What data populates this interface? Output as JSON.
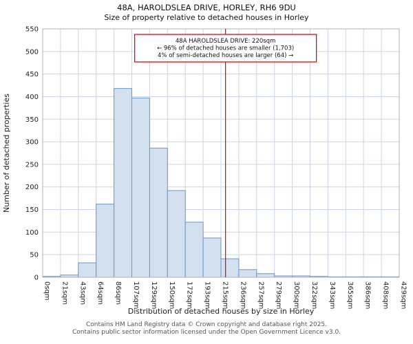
{
  "title": "48A, HAROLDSLEA DRIVE, HORLEY, RH6 9DU",
  "subtitle": "Size of property relative to detached houses in Horley",
  "chart_data": {
    "type": "bar",
    "title": "48A, HAROLDSLEA DRIVE, HORLEY, RH6 9DU — Size of property relative to detached houses in Horley",
    "xlabel": "Distribution of detached houses by size in Horley",
    "ylabel": "Number of detached properties",
    "bin_edges_sqm": [
      0,
      21,
      43,
      64,
      86,
      107,
      129,
      150,
      172,
      193,
      215,
      236,
      257,
      279,
      300,
      322,
      343,
      365,
      386,
      408,
      429
    ],
    "tick_labels": [
      "0sqm",
      "21sqm",
      "43sqm",
      "64sqm",
      "86sqm",
      "107sqm",
      "129sqm",
      "150sqm",
      "172sqm",
      "193sqm",
      "215sqm",
      "236sqm",
      "257sqm",
      "279sqm",
      "300sqm",
      "322sqm",
      "343sqm",
      "365sqm",
      "386sqm",
      "408sqm",
      "429sqm"
    ],
    "values": [
      2,
      5,
      32,
      162,
      418,
      397,
      286,
      192,
      122,
      87,
      41,
      17,
      8,
      3,
      3,
      2,
      1,
      1,
      1,
      1
    ],
    "ylim": [
      0,
      550
    ],
    "ytick_step": 50,
    "grid": true,
    "legend": "none",
    "marker": {
      "value_sqm": 220,
      "color": "#bb1111"
    },
    "annotation": {
      "lines": [
        "48A HAROLDSLEA DRIVE: 220sqm",
        "← 96% of detached houses are smaller (1,703)",
        "4% of semi-detached houses are larger (64) →"
      ],
      "border_color": "#cc0000"
    },
    "colors": {
      "bar_fill": "#d2e0f0",
      "bar_stroke": "#6c96c8",
      "grid": "#ccd4e4",
      "spine": "#a9b2c0",
      "text": "#222222"
    }
  },
  "footer": {
    "line1": "Contains HM Land Registry data © Crown copyright and database right 2025.",
    "line2": "Contains public sector information licensed under the Open Government Licence v3.0."
  }
}
